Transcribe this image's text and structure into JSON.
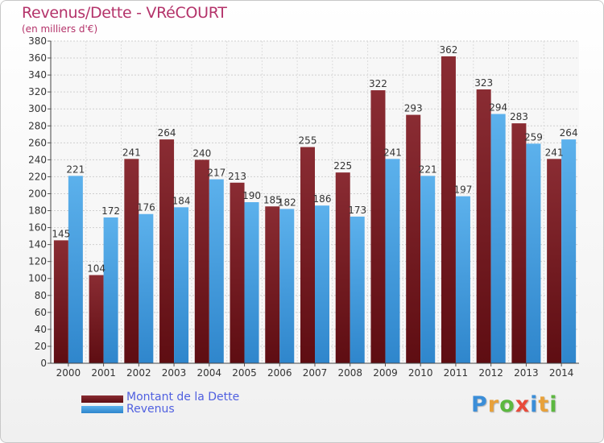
{
  "header": {
    "title": "Revenus/Dette - VRéCOURT",
    "subtitle": "(en milliers d'€)"
  },
  "chart_data": {
    "type": "bar",
    "title": "Revenus/Dette - VRéCOURT",
    "ylabel": "(en milliers d'€)",
    "xlabel": "",
    "ylim": [
      0,
      380
    ],
    "ytick_step": 20,
    "grid": true,
    "legend_position": "bottom-left",
    "categories": [
      "2000",
      "2001",
      "2002",
      "2003",
      "2004",
      "2005",
      "2006",
      "2007",
      "2008",
      "2009",
      "2010",
      "2011",
      "2012",
      "2013",
      "2014"
    ],
    "series": [
      {
        "name": "Montant de la Dette",
        "color": "#7a1e24",
        "values": [
          145,
          104,
          241,
          264,
          240,
          213,
          185,
          255,
          225,
          322,
          293,
          362,
          323,
          283,
          241
        ]
      },
      {
        "name": "Revenus",
        "color": "#4aa3e4",
        "values": [
          221,
          172,
          176,
          184,
          217,
          190,
          182,
          186,
          173,
          241,
          221,
          197,
          294,
          259,
          264
        ]
      }
    ]
  },
  "legend": {
    "items": [
      {
        "label": "Montant de la Dette",
        "color": "#7a1e24"
      },
      {
        "label": "Revenus",
        "color": "#4aa3e4"
      }
    ]
  },
  "brand": {
    "letters": [
      "P",
      "r",
      "o",
      "x",
      "i",
      "t",
      "i"
    ],
    "colors": [
      "#3b8ed8",
      "#e8a13a",
      "#5cb840",
      "#e84a3a",
      "#3b8ed8",
      "#e8a13a",
      "#5cb840"
    ]
  }
}
